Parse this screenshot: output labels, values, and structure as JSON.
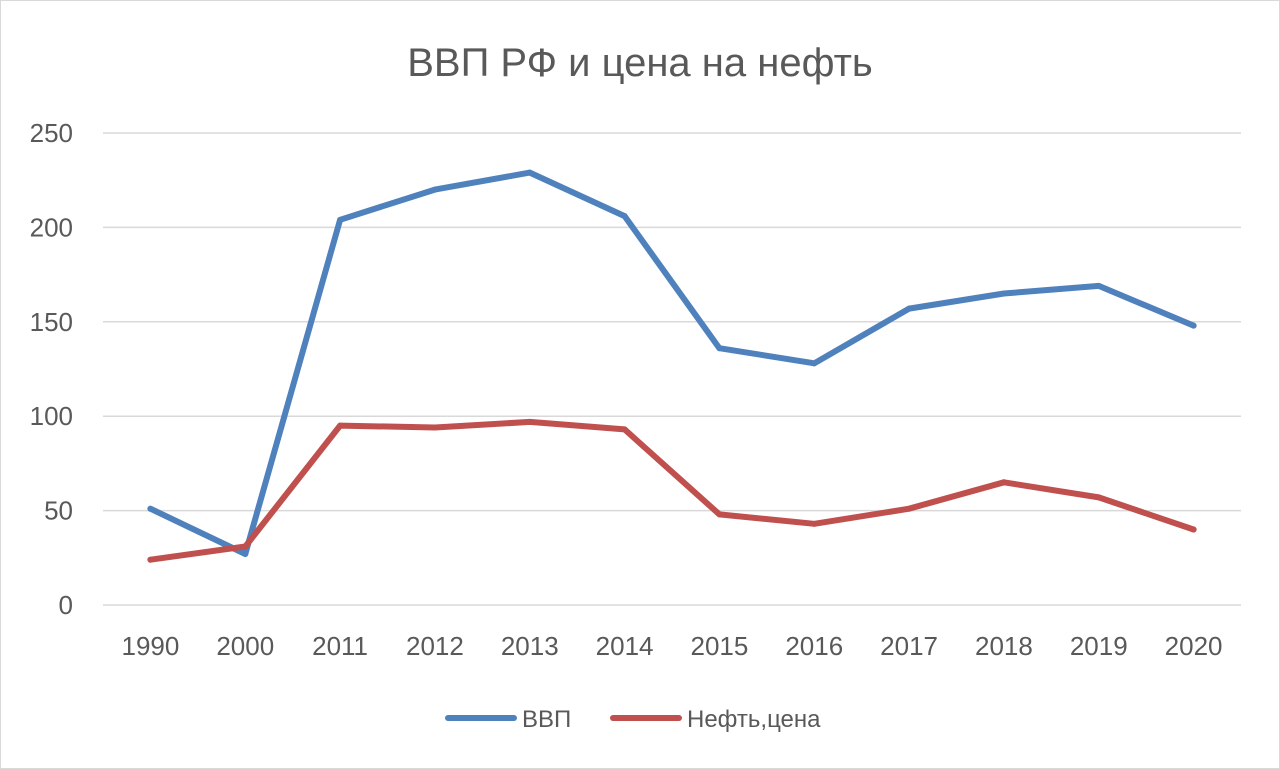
{
  "chart_data": {
    "type": "line",
    "title": "ВВП РФ и цена на нефть",
    "xlabel": "",
    "ylabel": "",
    "categories": [
      "1990",
      "2000",
      "2011",
      "2012",
      "2013",
      "2014",
      "2015",
      "2016",
      "2017",
      "2018",
      "2019",
      "2020"
    ],
    "ylim": [
      0,
      250
    ],
    "yticks": [
      "0",
      "50",
      "100",
      "150",
      "200",
      "250"
    ],
    "grid": true,
    "legend_position": "bottom",
    "series": [
      {
        "name": "ВВП",
        "color": "#4f81bd",
        "values": [
          51,
          27,
          204,
          220,
          229,
          206,
          136,
          128,
          157,
          165,
          169,
          148
        ]
      },
      {
        "name": "Нефть,цена",
        "color": "#c0504d",
        "values": [
          24,
          31,
          95,
          94,
          97,
          93,
          48,
          43,
          51,
          65,
          57,
          40
        ]
      }
    ]
  }
}
